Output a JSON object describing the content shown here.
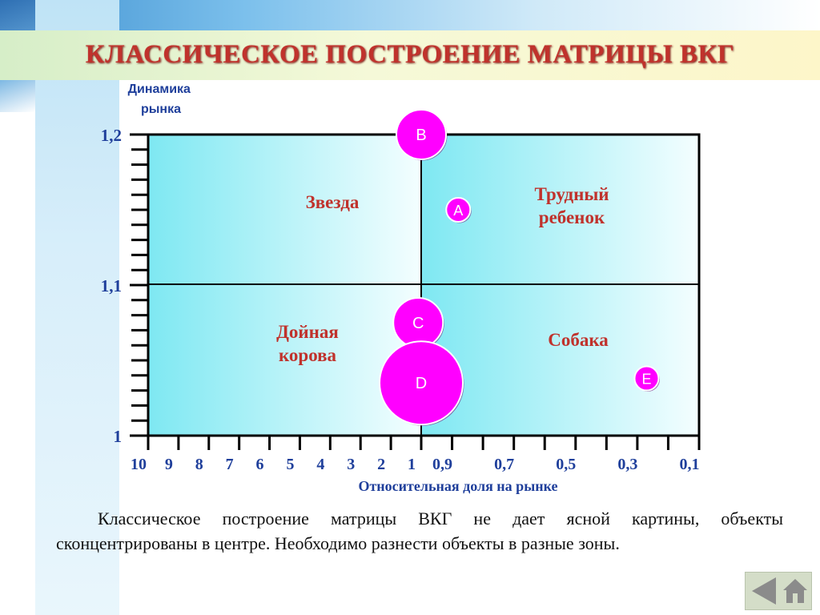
{
  "title": "КЛАССИЧЕСКОЕ ПОСТРОЕНИЕ МАТРИЦЫ ВКГ",
  "paragraph": "Классическое построение матрицы ВКГ не дает ясной картины, объекты сконцентрированы в центре. Необходимо разнести объекты в разные зоны.",
  "colors": {
    "title": "#c0322c",
    "axis_labels": "#1f3f9b",
    "quadrant_labels": "#c0322c",
    "bubble_fill": "#ff00ff",
    "quadrant_fill_dark": "#7ee8f2",
    "quadrant_fill_light": "#f4feff"
  },
  "navigation": {
    "back_icon": "left-arrow-icon",
    "home_icon": "home-icon"
  },
  "chart_data": {
    "type": "scatter",
    "subtype": "bubble",
    "title": "",
    "xlabel": "Относительная доля на рынке",
    "ylabel": "Динамика рынка",
    "x_axis": {
      "scale": "piecewise",
      "reversed": true,
      "range": [
        10,
        0.1
      ],
      "ticks": [
        "10",
        "9",
        "8",
        "7",
        "6",
        "5",
        "4",
        "3",
        "2",
        "1",
        "0,9",
        "0,7",
        "0,5",
        "0,3",
        "0,1"
      ],
      "tick_values": [
        10,
        9,
        8,
        7,
        6,
        5,
        4,
        3,
        2,
        1,
        0.9,
        0.7,
        0.5,
        0.3,
        0.1
      ],
      "divider_at": 1
    },
    "y_axis": {
      "range": [
        1,
        1.2
      ],
      "ticks": [
        "1",
        "1,1",
        "1,2"
      ],
      "tick_values": [
        1,
        1.1,
        1.2
      ],
      "divider_at": 1.1
    },
    "quadrants": [
      {
        "label": "Звезда",
        "position": "top-left"
      },
      {
        "label": "Трудный ребенок",
        "position": "top-right"
      },
      {
        "label": "Дойная корова",
        "position": "bottom-left"
      },
      {
        "label": "Собака",
        "position": "bottom-right"
      }
    ],
    "points": [
      {
        "label": "B",
        "x": 1.0,
        "y": 1.2,
        "size": "large"
      },
      {
        "label": "A",
        "x": 0.88,
        "y": 1.15,
        "size": "small"
      },
      {
        "label": "C",
        "x": 1.1,
        "y": 1.075,
        "size": "medium"
      },
      {
        "label": "D",
        "x": 1.0,
        "y": 1.035,
        "size": "xlarge"
      },
      {
        "label": "E",
        "x": 0.27,
        "y": 1.038,
        "size": "small"
      }
    ],
    "grid": false,
    "legend": "none"
  }
}
